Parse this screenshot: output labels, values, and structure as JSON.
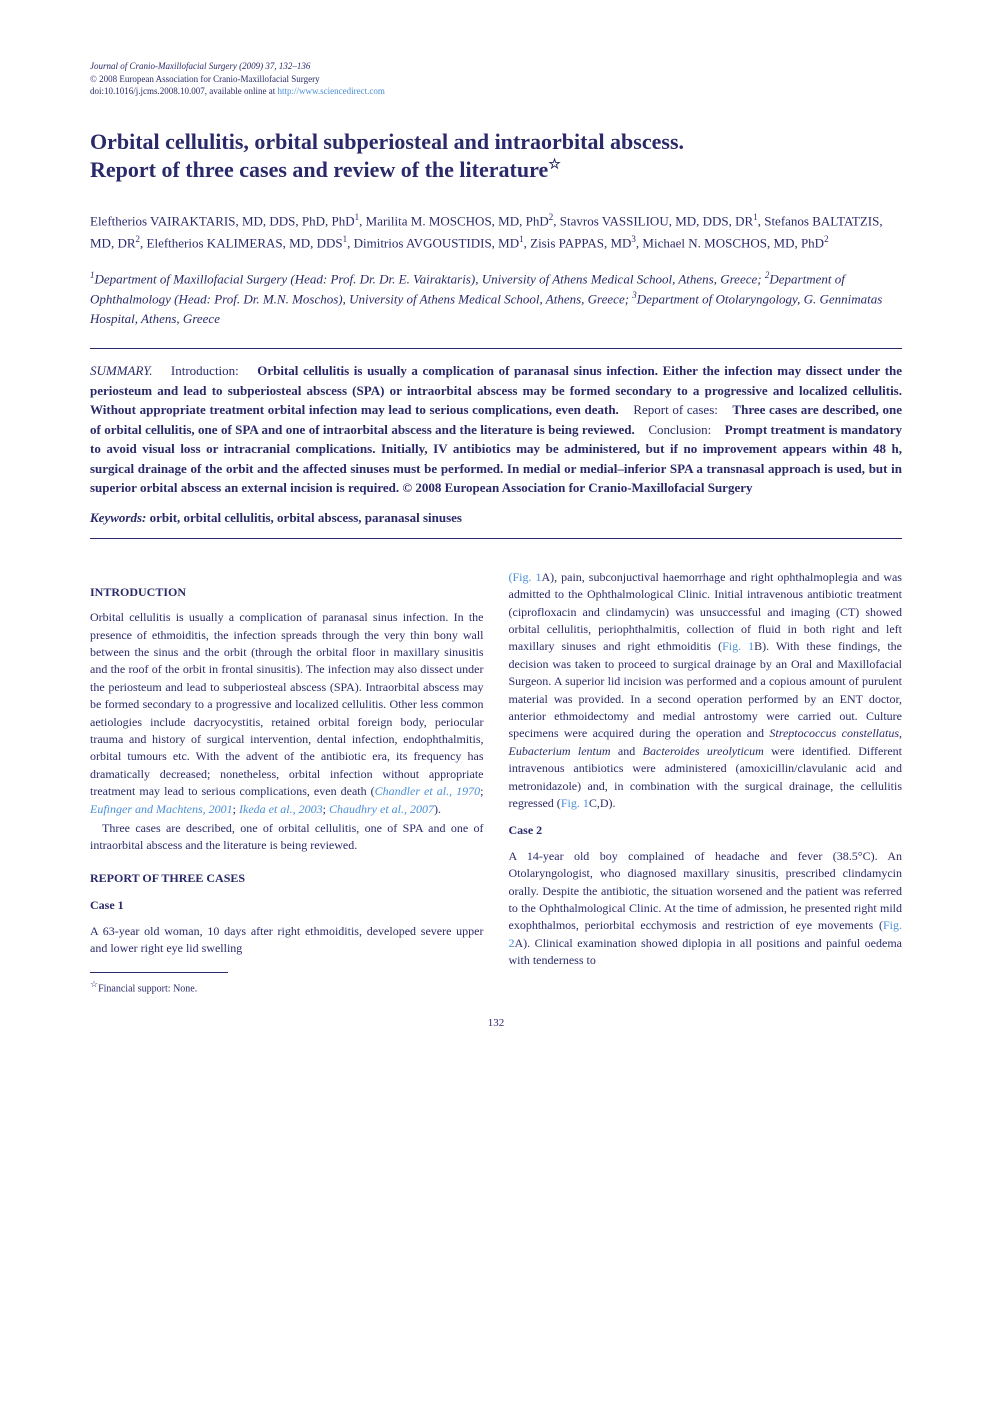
{
  "header": {
    "journal_line": "Journal of Cranio-Maxillofacial Surgery (2009) 37, 132–136",
    "copyright_line": "© 2008 European Association for Cranio-Maxillofacial Surgery",
    "doi_line": "doi:10.1016/j.jcms.2008.10.007, available online at ",
    "doi_link": "http://www.sciencedirect.com"
  },
  "title": {
    "line1": "Orbital cellulitis, orbital subperiosteal and intraorbital abscess.",
    "line2": "Report of three cases and review of the literature",
    "star": "☆"
  },
  "authors": {
    "a1": "Eleftherios VAIRAKTARIS, MD, DDS, PhD, PhD",
    "a1_sup": "1",
    "a2": ", Marilita M. MOSCHOS, MD, PhD",
    "a2_sup": "2",
    "a3": ",\nStavros VASSILIOU, MD, DDS, DR",
    "a3_sup": "1",
    "a4": ", Stefanos BALTATZIS, MD, DR",
    "a4_sup": "2",
    "a5": ", Eleftherios KALIMERAS, MD, DDS",
    "a5_sup": "1",
    "a6": ",\nDimitrios AVGOUSTIDIS, MD",
    "a6_sup": "1",
    "a7": ", Zisis PAPPAS, MD",
    "a7_sup": "3",
    "a8": ", Michael N. MOSCHOS, MD, PhD",
    "a8_sup": "2"
  },
  "affiliations": {
    "aff1_sup": "1",
    "aff1": "Department of Maxillofacial Surgery (Head: Prof. Dr. Dr. E. Vairaktaris), University of Athens Medical School, Athens, Greece; ",
    "aff2_sup": "2",
    "aff2": "Department of Ophthalmology (Head: Prof. Dr. M.N. Moschos), University of Athens Medical School, Athens, Greece; ",
    "aff3_sup": "3",
    "aff3": "Department of Otolaryngology, G. Gennimatas Hospital, Athens, Greece"
  },
  "summary": {
    "label": "SUMMARY.",
    "intro_h": "Introduction:",
    "intro_text": "Orbital cellulitis is usually a complication of paranasal sinus infection. Either the infection may dissect under the periosteum and lead to subperiosteal abscess (SPA) or intraorbital abscess may be formed secondary to a progressive and localized cellulitis. Without appropriate treatment orbital infection may lead to serious complications, even death.",
    "cases_h": "Report of cases:",
    "cases_text": "Three cases are described, one of orbital cellulitis, one of SPA and one of intraorbital abscess and the literature is being reviewed.",
    "concl_h": "Conclusion:",
    "concl_text": "Prompt treatment is mandatory to avoid visual loss or intracranial complications. Initially, IV antibiotics may be administered, but if no improvement appears within 48 h, surgical drainage of the orbit and the affected sinuses must be performed. In medial or medial–inferior SPA a transnasal approach is used, but in superior orbital abscess an external incision is required. © 2008 European Association for Cranio-Maxillofacial Surgery"
  },
  "keywords": {
    "label": "Keywords:",
    "text": "orbit, orbital cellulitis, orbital abscess, paranasal sinuses"
  },
  "sections": {
    "intro_heading": "INTRODUCTION",
    "intro_p1": "Orbital cellulitis is usually a complication of paranasal sinus infection. In the presence of ethmoiditis, the infection spreads through the very thin bony wall between the sinus and the orbit (through the orbital floor in maxillary sinusitis and the roof of the orbit in frontal sinusitis). The infection may also dissect under the periosteum and lead to subperiosteal abscess (SPA). Intraorbital abscess may be formed secondary to a progressive and localized cellulitis. Other less common aetiologies include dacryocystitis, retained orbital foreign body, periocular trauma and history of surgical intervention, dental infection, endophthalmitis, orbital tumours etc. With the advent of the antibiotic era, its frequency has dramatically decreased; nonetheless, orbital infection without appropriate treatment may lead to serious complications, even death (",
    "intro_ref1": "Chandler et al., 1970",
    "intro_ref_sep1": "; ",
    "intro_ref2": "Eufinger and Machtens, 2001",
    "intro_ref_sep2": "; ",
    "intro_ref3": "Ikeda et al., 2003",
    "intro_ref_sep3": "; ",
    "intro_ref4": "Chaudhry et al., 2007",
    "intro_ref_close": ").",
    "intro_p2": "Three cases are described, one of orbital cellulitis, one of SPA and one of intraorbital abscess and the literature is being reviewed.",
    "report_heading": "REPORT OF THREE CASES",
    "case1_heading": "Case 1",
    "case1_p1": "A 63-year old woman, 10 days after right ethmoiditis, developed severe upper and lower right eye lid swelling",
    "case1_cont_fig1a": "(Fig. 1",
    "case1_cont1": "A), pain, subconjuctival haemorrhage and right ophthalmoplegia and was admitted to the Ophthalmological Clinic. Initial intravenous antibiotic treatment (ciprofloxacin and clindamycin) was unsuccessful and imaging (CT) showed orbital cellulitis, periophthalmitis, collection of fluid in both right and left maxillary sinuses and right ethmoiditis (",
    "case1_fig1b": "Fig. 1",
    "case1_cont2": "B). With these findings, the decision was taken to proceed to surgical drainage by an Oral and Maxillofacial Surgeon. A superior lid incision was performed and a copious amount of purulent material was provided. In a second operation performed by an ENT doctor, anterior ethmoidectomy and medial antrostomy were carried out. Culture specimens were acquired during the operation and ",
    "case1_sp1": "Streptococcus constellatus",
    "case1_sep1": ", ",
    "case1_sp2": "Eubacterium lentum",
    "case1_sep2": " and ",
    "case1_sp3": "Bacteroides ureolyticum",
    "case1_cont3": " were identified. Different intravenous antibiotics were administered (amoxicillin/clavulanic acid and metronidazole) and, in combination with the surgical drainage, the cellulitis regressed (",
    "case1_fig1cd": "Fig. 1",
    "case1_cont4": "C,D).",
    "case2_heading": "Case 2",
    "case2_p1_start": "A 14-year old boy complained of headache and fever (38.5°C). An Otolaryngologist, who diagnosed maxillary sinusitis, prescribed clindamycin orally. Despite the antibiotic, the situation worsened and the patient was referred to the Ophthalmological Clinic. At the time of admission, he presented right mild exophthalmos, periorbital ecchymosis and restriction of eye movements (",
    "case2_fig2a": "Fig. 2",
    "case2_p1_end": "A). Clinical examination showed diplopia in all positions and painful oedema with tenderness to"
  },
  "footnote": {
    "star": "☆",
    "text": "Financial support: None."
  },
  "page_number": "132"
}
